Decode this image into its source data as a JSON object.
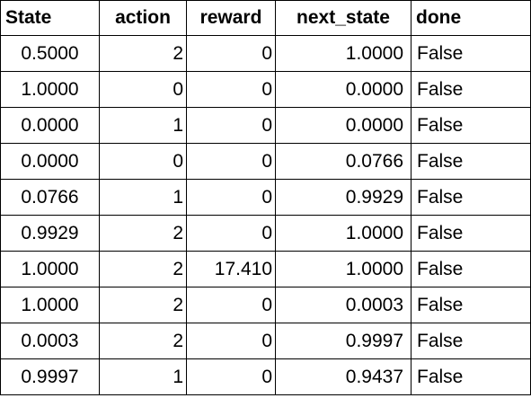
{
  "table": {
    "headers": [
      "State",
      "action",
      "reward",
      "next_state",
      "done"
    ],
    "rows": [
      [
        "0.5000",
        "2",
        "0",
        "1.0000",
        "False"
      ],
      [
        "1.0000",
        "0",
        "0",
        "0.0000",
        "False"
      ],
      [
        "0.0000",
        "1",
        "0",
        "0.0000",
        "False"
      ],
      [
        "0.0000",
        "0",
        "0",
        "0.0766",
        "False"
      ],
      [
        "0.0766",
        "1",
        "0",
        "0.9929",
        "False"
      ],
      [
        "0.9929",
        "2",
        "0",
        "1.0000",
        "False"
      ],
      [
        "1.0000",
        "2",
        "17.410",
        "1.0000",
        "False"
      ],
      [
        "1.0000",
        "2",
        "0",
        "0.0003",
        "False"
      ],
      [
        "0.0003",
        "2",
        "0",
        "0.9997",
        "False"
      ],
      [
        "0.9997",
        "1",
        "0",
        "0.9437",
        "False"
      ]
    ]
  }
}
